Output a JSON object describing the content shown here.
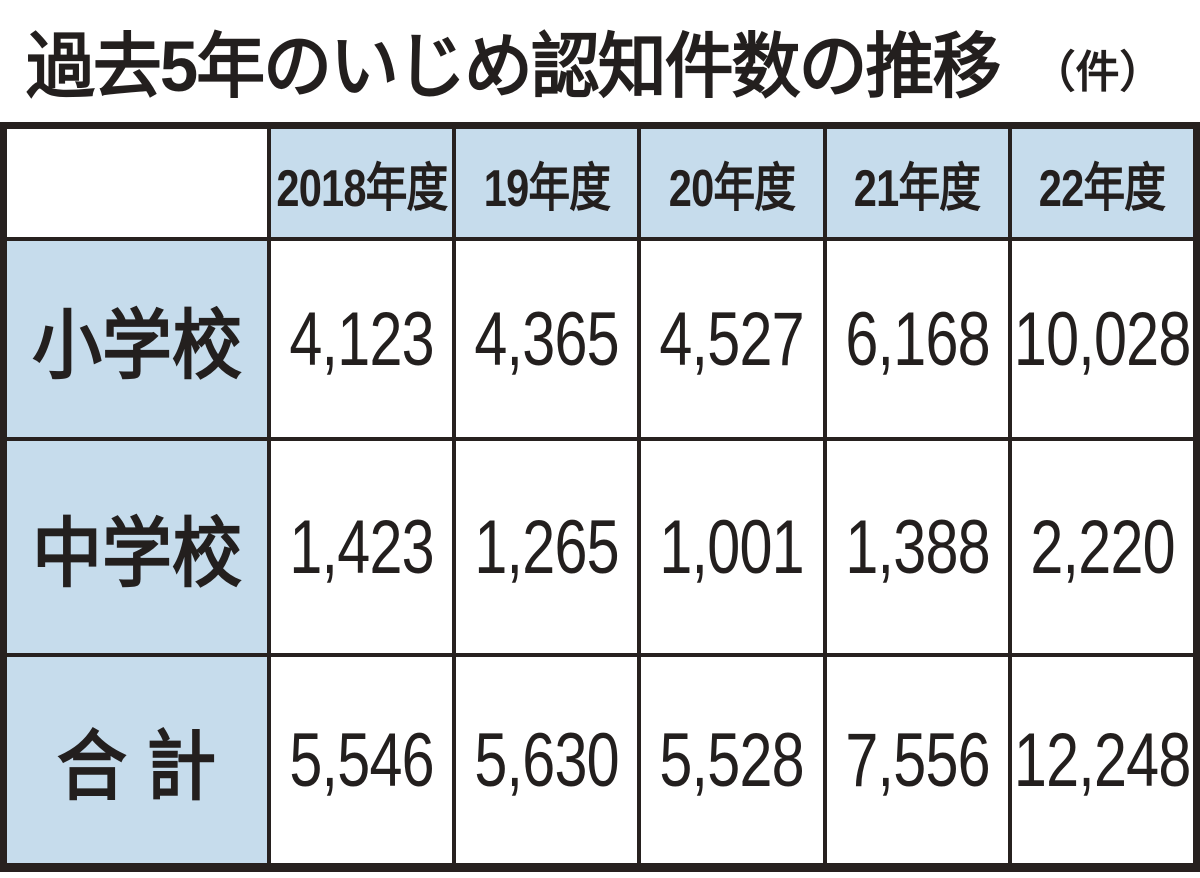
{
  "title": {
    "main": "過去5年のいじめ認知件数の推移",
    "unit": "（件）"
  },
  "table": {
    "corner": "",
    "columns": [
      "2018年度",
      "19年度",
      "20年度",
      "21年度",
      "22年度"
    ],
    "rows": [
      {
        "label": "小学校",
        "values": [
          "4,123",
          "4,365",
          "4,527",
          "6,168",
          "10,028"
        ]
      },
      {
        "label": "中学校",
        "values": [
          "1,423",
          "1,265",
          "1,001",
          "1,388",
          "2,220"
        ]
      },
      {
        "label": "合 計",
        "values": [
          "5,546",
          "5,630",
          "5,528",
          "7,556",
          "12,248"
        ]
      }
    ]
  },
  "colors": {
    "header_bg": "#c6dcec",
    "border": "#27211f",
    "text": "#231f1e",
    "background": "#ffffff"
  },
  "chart_data": {
    "type": "table",
    "title": "過去5年のいじめ認知件数の推移（件）",
    "unit": "件",
    "categories": [
      "2018年度",
      "19年度",
      "20年度",
      "21年度",
      "22年度"
    ],
    "series": [
      {
        "name": "小学校",
        "values": [
          4123,
          4365,
          4527,
          6168,
          10028
        ]
      },
      {
        "name": "中学校",
        "values": [
          1423,
          1265,
          1001,
          1388,
          2220
        ]
      },
      {
        "name": "合計",
        "values": [
          5546,
          5630,
          5528,
          7556,
          12248
        ]
      }
    ]
  }
}
